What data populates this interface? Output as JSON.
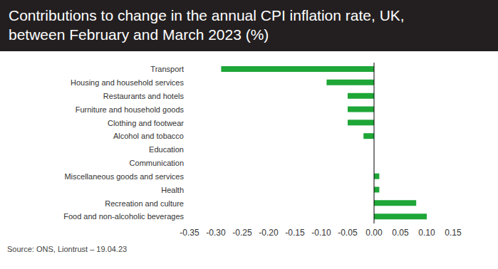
{
  "chart_data": {
    "type": "bar",
    "orientation": "horizontal",
    "title": "Contributions to change in the annual CPI inflation rate, UK, between February and March 2023 (%)",
    "source": "Source: ONS, Liontrust – 19.04.23",
    "categories": [
      "Transport",
      "Housing and household services",
      "Restaurants and hotels",
      "Furniture and household goods",
      "Clothing and footwear",
      "Alcohol and tobacco",
      "Education",
      "Communication",
      "Miscellaneous goods and services",
      "Health",
      "Recreation and culture",
      "Food and non-alcoholic beverages"
    ],
    "values": [
      -0.29,
      -0.09,
      -0.05,
      -0.05,
      -0.05,
      -0.02,
      0,
      0,
      0.01,
      0.01,
      0.08,
      0.1
    ],
    "color": "#1ea637",
    "xlim": [
      -0.35,
      0.15
    ],
    "xticks": [
      -0.35,
      {
        "value": -0.3,
        "label": "-0.30"
      },
      -0.25,
      {
        "value": -0.2,
        "label": "-0.20"
      },
      -0.15,
      {
        "value": -0.1,
        "label": "-0.10"
      },
      -0.05,
      {
        "value": 0,
        "label": "0.00"
      },
      0.05,
      {
        "value": 0.1,
        "label": "0.10"
      },
      0.15
    ],
    "grid": false
  }
}
